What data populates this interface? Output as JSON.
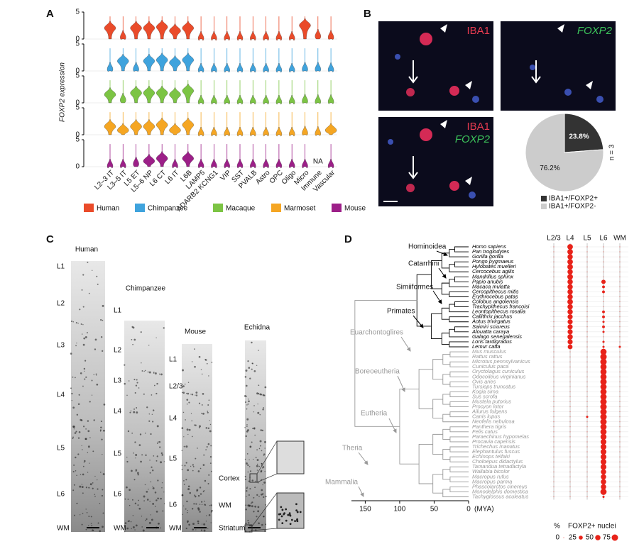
{
  "panel_letters": [
    "A",
    "B",
    "C",
    "D"
  ],
  "panel_a": {
    "type": "violin",
    "ylabel": "FOXP2 expression",
    "ylim": [
      0,
      5
    ],
    "yticks": [
      0,
      5
    ],
    "na_label": "NA",
    "categories": [
      "L2–3 IT",
      "L3–5 IT",
      "L5 ET",
      "L5–6 NP",
      "L6 CT",
      "L6 IT",
      "L6B",
      "LAMP5",
      "ADARB2 KCNG1",
      "VIP",
      "SST",
      "PVALB",
      "Astro",
      "OPC",
      "Oligo",
      "Micro",
      "Immune",
      "Vascular"
    ],
    "series": [
      {
        "name": "Human",
        "color": "#ea4b2a",
        "values": [
          2,
          0.3,
          2,
          2,
          2.2,
          1.5,
          2,
          0.1,
          0.1,
          0.1,
          0.1,
          0.1,
          0.1,
          0.1,
          0.1,
          2.5,
          0.5,
          0.3
        ]
      },
      {
        "name": "Chimpanzee",
        "color": "#3fa3dd",
        "values": [
          0.3,
          1.8,
          0.3,
          1.8,
          2,
          1.5,
          2,
          0.1,
          0.1,
          0.1,
          0.1,
          0.1,
          0.1,
          0.1,
          0.1,
          0.3,
          0.3,
          0.2
        ]
      },
      {
        "name": "Macaque",
        "color": "#7cc444",
        "values": [
          1.5,
          0.5,
          1.8,
          1.8,
          1.8,
          1.5,
          2.2,
          0.1,
          0.1,
          0.1,
          0.1,
          0.1,
          0.1,
          0.1,
          0.1,
          0.3,
          0.2,
          0.2
        ]
      },
      {
        "name": "Marmoset",
        "color": "#f5a623",
        "values": [
          1.5,
          0.8,
          1.5,
          1.5,
          1.8,
          0.8,
          1.8,
          0.1,
          0.1,
          0.1,
          0.1,
          0.1,
          0.1,
          0.1,
          0.1,
          0.3,
          0.2,
          0.8
        ]
      },
      {
        "name": "Mouse",
        "color": "#9c1f88",
        "values": [
          0.1,
          0.1,
          0.5,
          1,
          1.5,
          0.1,
          1.5,
          0.1,
          0.1,
          0.1,
          0.1,
          0.1,
          0.1,
          0.1,
          0.1,
          0.1,
          null,
          0.1
        ]
      }
    ]
  },
  "panel_b": {
    "images": [
      "IBA1",
      "FOXP2",
      "IBA1",
      "FOXP2"
    ],
    "pie": {
      "type": "pie",
      "values": [
        23.8,
        76.2
      ],
      "value_labels": [
        "23.8%",
        "76.2%"
      ],
      "colors": [
        "#333333",
        "#cccccc"
      ],
      "legend": [
        "IBA1+/FOXP2+",
        "IBA1+/FOXP2-"
      ],
      "note": "n = 3"
    }
  },
  "panel_c": {
    "columns": [
      {
        "label": "Human",
        "layers": [
          "L1",
          "L2",
          "L3",
          "L4",
          "L5",
          "L6",
          "WM"
        ]
      },
      {
        "label": "Chimpanzee",
        "layers": [
          "L1",
          "L2",
          "L3",
          "L4",
          "L5",
          "L6",
          "WM"
        ]
      },
      {
        "label": "Mouse",
        "layers": [
          "L1",
          "L2/3",
          "L4",
          "L5",
          "L6",
          "WM"
        ]
      },
      {
        "label": "Echidna",
        "layers": [
          "Cortex",
          "WM",
          "Striatum"
        ]
      }
    ]
  },
  "panel_d": {
    "type": "dotplot",
    "columns": [
      "L2/3",
      "L4",
      "L5",
      "L6",
      "WM"
    ],
    "xlabel": "(MYA)",
    "xlim": [
      170,
      0
    ],
    "xticks": [
      150,
      100,
      50,
      0
    ],
    "clades": [
      "Hominoidea",
      "Catarrhini",
      "Simiiformes",
      "Primates",
      "Euarchontoglires",
      "Boreoeutheria",
      "Eutheria",
      "Theria",
      "Mammalia"
    ],
    "size_legend": {
      "title": "%",
      "label": "FOXP2+ nuclei",
      "values": [
        0,
        25,
        50,
        75
      ]
    },
    "primates": {
      "color": "#000000",
      "species": [
        {
          "name": "Homo sapiens",
          "dots": [
            0,
            55,
            0,
            0,
            0
          ]
        },
        {
          "name": "Pan troglodytes",
          "dots": [
            0,
            55,
            0,
            0,
            0
          ]
        },
        {
          "name": "Gorilla gorilla",
          "dots": [
            0,
            50,
            0,
            0,
            0
          ]
        },
        {
          "name": "Pongo pygmaeus",
          "dots": [
            0,
            55,
            0,
            0,
            0
          ]
        },
        {
          "name": "Hylobates muelleri",
          "dots": [
            0,
            55,
            0,
            0,
            0
          ]
        },
        {
          "name": "Cercocebus agilis",
          "dots": [
            0,
            50,
            0,
            0,
            0
          ]
        },
        {
          "name": "Mandrillus sphinx",
          "dots": [
            0,
            55,
            0,
            0,
            0
          ]
        },
        {
          "name": "Papio anubis",
          "dots": [
            0,
            50,
            0,
            30,
            0
          ]
        },
        {
          "name": "Macaca mulatta",
          "dots": [
            0,
            50,
            0,
            10,
            0
          ]
        },
        {
          "name": "Cercopithecus mitis",
          "dots": [
            0,
            50,
            0,
            10,
            0
          ]
        },
        {
          "name": "Erythrocebus patas",
          "dots": [
            0,
            50,
            0,
            0,
            0
          ]
        },
        {
          "name": "Colobus angolensis",
          "dots": [
            0,
            55,
            0,
            0,
            0
          ]
        },
        {
          "name": "Trachypithecus francoisi",
          "dots": [
            0,
            50,
            0,
            0,
            0
          ]
        },
        {
          "name": "Leontopithecus rosalia",
          "dots": [
            0,
            50,
            0,
            10,
            0
          ]
        },
        {
          "name": "Callithrix jacchus",
          "dots": [
            0,
            45,
            0,
            10,
            0
          ]
        },
        {
          "name": "Aotus trivirgatus",
          "dots": [
            0,
            45,
            0,
            5,
            0
          ]
        },
        {
          "name": "Saimiri sciureus",
          "dots": [
            0,
            45,
            0,
            10,
            0
          ]
        },
        {
          "name": "Alouatta caraya",
          "dots": [
            0,
            45,
            0,
            5,
            0
          ]
        },
        {
          "name": "Galago senegalensis",
          "dots": [
            0,
            50,
            0,
            0,
            0
          ]
        },
        {
          "name": "Loris tardigradus",
          "dots": [
            0,
            45,
            0,
            5,
            0
          ]
        },
        {
          "name": "Lemur catta",
          "dots": [
            0,
            40,
            0,
            5,
            5
          ]
        }
      ]
    },
    "others": {
      "color": "#999999",
      "species": [
        {
          "name": "Mus musculus",
          "dots": [
            0,
            0,
            0,
            70,
            0
          ]
        },
        {
          "name": "Rattus rattus",
          "dots": [
            0,
            0,
            0,
            75,
            0
          ]
        },
        {
          "name": "Microtus pennsylvanicus",
          "dots": [
            0,
            0,
            0,
            75,
            0
          ]
        },
        {
          "name": "Cuniculus paca",
          "dots": [
            0,
            0,
            0,
            70,
            0
          ]
        },
        {
          "name": "Oryctolagus cuniculus",
          "dots": [
            0,
            0,
            0,
            70,
            0
          ]
        },
        {
          "name": "Odocoileus virginianus",
          "dots": [
            0,
            0,
            0,
            70,
            0
          ]
        },
        {
          "name": "Ovis aries",
          "dots": [
            0,
            0,
            0,
            75,
            0
          ]
        },
        {
          "name": "Tursiops truncatus",
          "dots": [
            0,
            0,
            0,
            70,
            0
          ]
        },
        {
          "name": "Kogia sima",
          "dots": [
            0,
            0,
            0,
            70,
            0
          ]
        },
        {
          "name": "Sus scrofa",
          "dots": [
            0,
            0,
            0,
            70,
            0
          ]
        },
        {
          "name": "Mustela putorius",
          "dots": [
            0,
            0,
            0,
            75,
            0
          ]
        },
        {
          "name": "Procyon lotor",
          "dots": [
            0,
            0,
            0,
            75,
            0
          ]
        },
        {
          "name": "Ailurus fulgens",
          "dots": [
            0,
            0,
            0,
            75,
            0
          ]
        },
        {
          "name": "Canis lupus",
          "dots": [
            0,
            0,
            5,
            75,
            0
          ]
        },
        {
          "name": "Neofelis nebulosa",
          "dots": [
            0,
            0,
            0,
            75,
            0
          ]
        },
        {
          "name": "Panthera tigris",
          "dots": [
            0,
            0,
            0,
            70,
            0
          ]
        },
        {
          "name": "Felis catus",
          "dots": [
            0,
            0,
            0,
            70,
            0
          ]
        },
        {
          "name": "Paraechinus hypomelas",
          "dots": [
            0,
            0,
            0,
            65,
            0
          ]
        },
        {
          "name": "Procavia capensis",
          "dots": [
            0,
            0,
            0,
            60,
            0
          ]
        },
        {
          "name": "Trichechus manatus",
          "dots": [
            0,
            0,
            0,
            60,
            0
          ]
        },
        {
          "name": "Elephantulus fuscus",
          "dots": [
            0,
            0,
            0,
            60,
            0
          ]
        },
        {
          "name": "Echinops telfairi",
          "dots": [
            0,
            0,
            0,
            60,
            0
          ]
        },
        {
          "name": "Choloepus didactylus",
          "dots": [
            0,
            0,
            0,
            60,
            0
          ]
        },
        {
          "name": "Tamandua tetradactyla",
          "dots": [
            0,
            0,
            0,
            60,
            0
          ]
        },
        {
          "name": "Wallabia bicolor",
          "dots": [
            0,
            0,
            0,
            50,
            0
          ]
        },
        {
          "name": "Macropus rufus",
          "dots": [
            0,
            0,
            0,
            50,
            0
          ]
        },
        {
          "name": "Macropus parma",
          "dots": [
            0,
            0,
            0,
            50,
            0
          ]
        },
        {
          "name": "Phascolarctos cinereus",
          "dots": [
            0,
            0,
            0,
            50,
            0
          ]
        },
        {
          "name": "Monodelphis domestica",
          "dots": [
            0,
            0,
            0,
            70,
            0
          ]
        },
        {
          "name": "Tachyglossus aculeatus",
          "dots": [
            0,
            0,
            0,
            5,
            0
          ]
        }
      ]
    }
  }
}
